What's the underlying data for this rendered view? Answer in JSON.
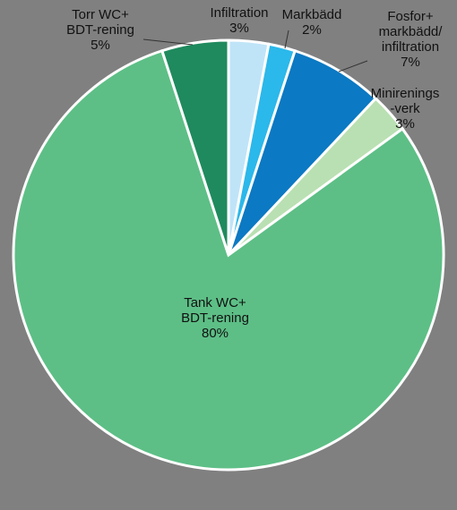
{
  "chart_data": {
    "type": "pie",
    "categories": [
      "Infiltration",
      "Markbädd",
      "Fosfor+\nmarkbädd/\ninfiltration",
      "Minirenings\n-verk",
      "Tank WC+\nBDT-rening",
      "Torr WC+\nBDT-rening"
    ],
    "values": [
      3,
      2,
      7,
      3,
      80,
      5
    ],
    "value_labels": [
      "3%",
      "2%",
      "7%",
      "3%",
      "80%",
      "5%"
    ],
    "colors": [
      "#bfe4f8",
      "#2bb8ea",
      "#0b79c3",
      "#b9e0b2",
      "#5dbf86",
      "#1f8a5e"
    ]
  }
}
